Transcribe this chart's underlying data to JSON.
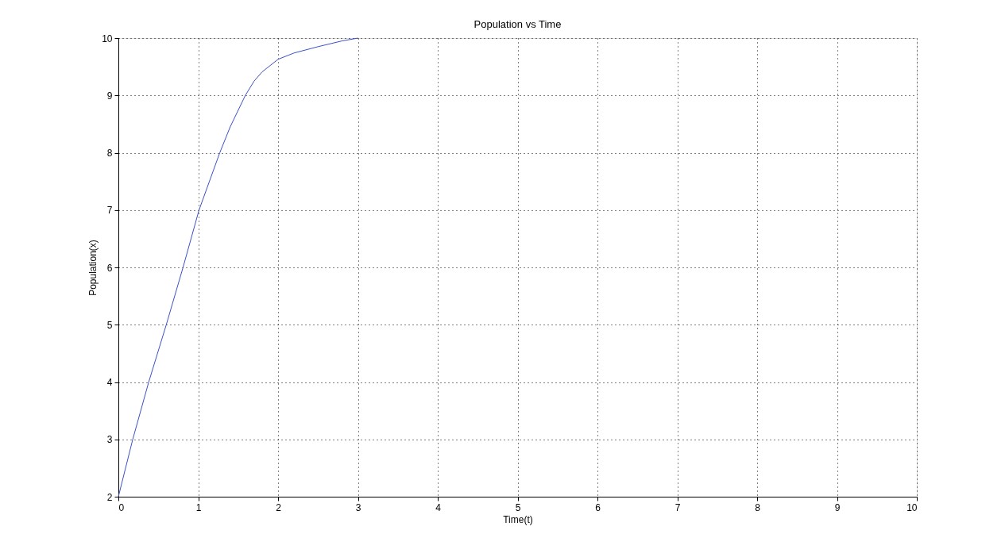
{
  "chart_data": {
    "type": "line",
    "title": "Population vs Time",
    "xlabel": "Time(t)",
    "ylabel": "Population(x)",
    "x": [
      0,
      0.18,
      0.38,
      0.6,
      0.81,
      1.01,
      1.27,
      1.4,
      1.59,
      1.7,
      1.8,
      2,
      2.2,
      2.5,
      2.8,
      3
    ],
    "series": [
      {
        "color": "#3b50c8",
        "values": [
          2,
          3,
          4,
          5,
          6,
          7,
          8,
          8.45,
          9,
          9.25,
          9.41,
          9.63,
          9.74,
          9.85,
          9.95,
          10
        ]
      }
    ],
    "xlim": [
      0,
      10
    ],
    "ylim": [
      2,
      10
    ],
    "xticks": [
      0,
      1,
      2,
      3,
      4,
      5,
      6,
      7,
      8,
      9,
      10
    ],
    "yticks": [
      2,
      3,
      4,
      5,
      6,
      7,
      8,
      9,
      10
    ],
    "grid": true,
    "line_style": "solid",
    "marker": "none"
  }
}
